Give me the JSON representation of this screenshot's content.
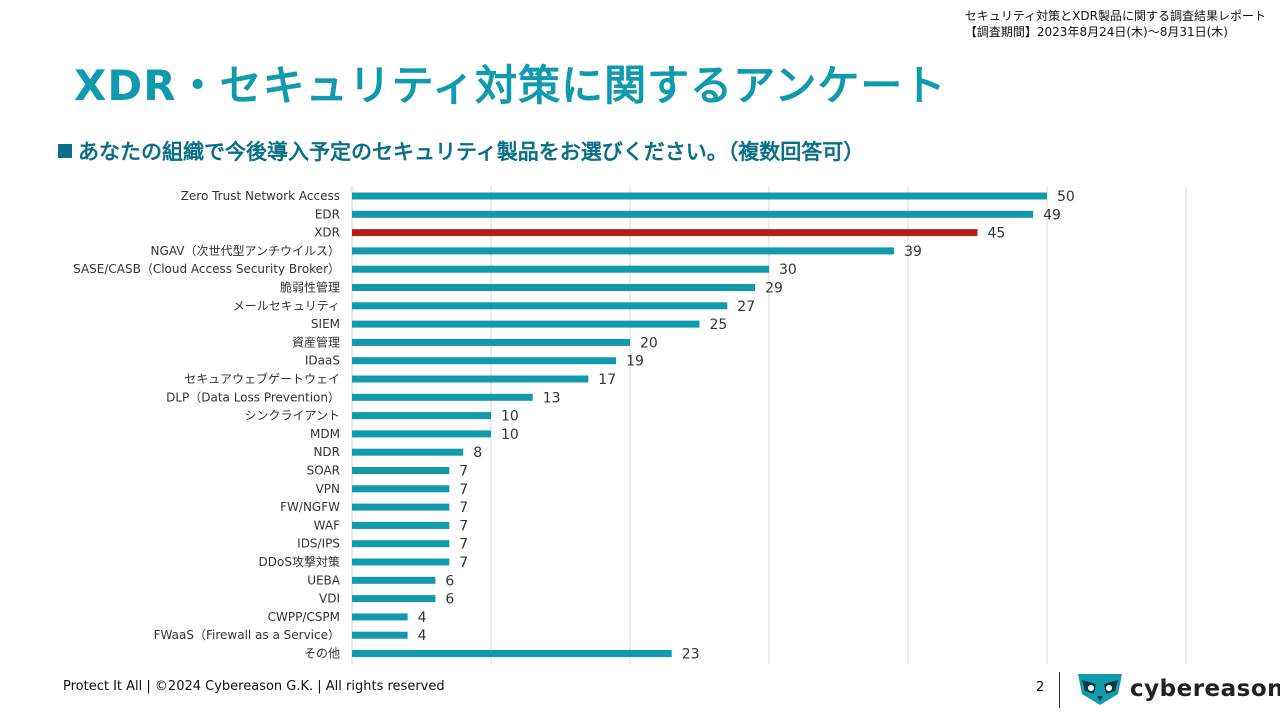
{
  "report": {
    "title": "セキュリティ対策とXDR製品に関する調査結果レポート",
    "period": "【調査期間】2023年8月24日(木)〜8月31日(木)"
  },
  "slide": {
    "title": "XDR・セキュリティ対策に関するアンケート",
    "question": "あなたの組織で今後導入予定のセキュリティ製品をお選びください。（複数回答可）"
  },
  "chart_data": {
    "type": "bar",
    "orientation": "horizontal",
    "categories": [
      "Zero Trust Network Access",
      "EDR",
      "XDR",
      "NGAV（次世代型アンチウイルス）",
      "SASE/CASB（Cloud Access Security Broker）",
      "脆弱性管理",
      "メールセキュリティ",
      "SIEM",
      "資産管理",
      "IDaaS",
      "セキュアウェブゲートウェイ",
      "DLP（Data Loss Prevention）",
      "シンクライアント",
      "MDM",
      "NDR",
      "SOAR",
      "VPN",
      "FW/NGFW",
      "WAF",
      "IDS/IPS",
      "DDoS攻撃対策",
      "UEBA",
      "VDI",
      "CWPP/CSPM",
      "FWaaS（Firewall as a Service）",
      "その他"
    ],
    "values": [
      50,
      49,
      45,
      39,
      30,
      29,
      27,
      25,
      20,
      19,
      17,
      13,
      10,
      10,
      8,
      7,
      7,
      7,
      7,
      7,
      7,
      6,
      6,
      4,
      4,
      23
    ],
    "highlight_index": 2,
    "xlim": [
      0,
      60
    ],
    "grid": true,
    "colors": {
      "bar": "#1199ac",
      "highlight": "#b71c1c",
      "grid": "#d9d9d9"
    }
  },
  "footer": {
    "text": "Protect It All | ©2024 Cybereason G.K. | All rights reserved",
    "page": "2",
    "logo_text": "cybereason"
  }
}
